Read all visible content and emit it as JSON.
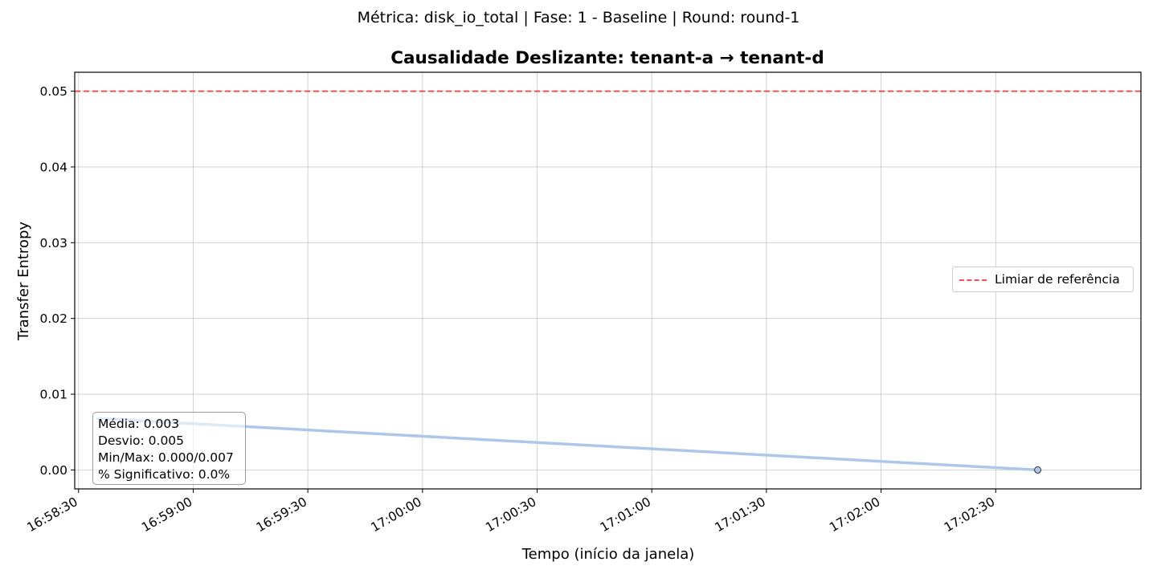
{
  "figure": {
    "suptitle": "Métrica: disk_io_total | Fase: 1 - Baseline | Round: round-1"
  },
  "chart_data": {
    "type": "line",
    "title": "Causalidade Deslizante: tenant-a → tenant-d",
    "xlabel": "Tempo (início da janela)",
    "ylabel": "Transfer Entropy",
    "xlim": [
      "16:58:29",
      "17:03:08"
    ],
    "ylim": [
      -0.0025,
      0.0525
    ],
    "x_ticks": [
      "16:58:30",
      "16:59:00",
      "16:59:30",
      "17:00:00",
      "17:00:30",
      "17:01:00",
      "17:01:30",
      "17:02:00",
      "17:02:30"
    ],
    "y_ticks": [
      0.0,
      0.01,
      0.02,
      0.03,
      0.04,
      0.05
    ],
    "y_tick_labels": [
      "0.00",
      "0.01",
      "0.02",
      "0.03",
      "0.04",
      "0.05"
    ],
    "grid": true,
    "series": [
      {
        "color": "#aec7e8",
        "x": [
          "16:58:35",
          "17:02:41"
        ],
        "values": [
          0.0068,
          0.0
        ]
      }
    ],
    "reference_line": {
      "name": "Limiar de referência",
      "value": 0.05,
      "color": "#f05050",
      "style": "dashed"
    },
    "legend": {
      "position": "center-right",
      "entries": [
        "Limiar de referência"
      ]
    },
    "annotation": {
      "lines": [
        "Média: 0.003",
        "Desvio: 0.005",
        "Min/Max: 0.000/0.007",
        "% Significativo: 0.0%"
      ]
    }
  }
}
